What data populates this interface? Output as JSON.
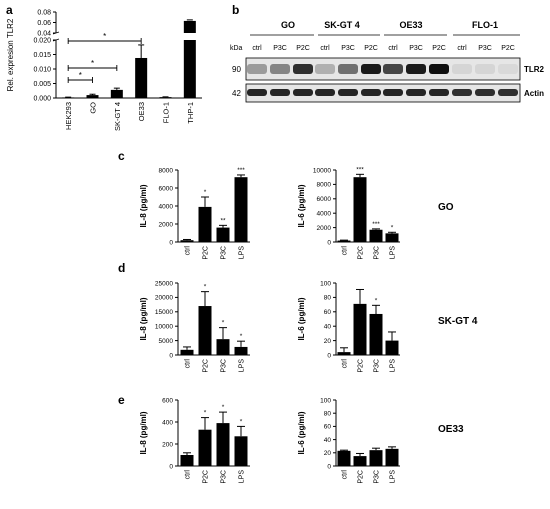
{
  "panel_letters": [
    "a",
    "b",
    "c",
    "d",
    "e"
  ],
  "blot": {
    "kda_label": "kDa",
    "groups": [
      "GO",
      "SK-GT 4",
      "OE33",
      "FLO-1"
    ],
    "lanes": [
      "ctrl",
      "P3C",
      "P2C"
    ],
    "rows": [
      {
        "kda": "90",
        "protein": "TLR2"
      },
      {
        "kda": "42",
        "protein": "Actin"
      }
    ],
    "tlr2_band_intensity": [
      0.35,
      0.45,
      0.85,
      0.25,
      0.55,
      0.95,
      0.75,
      0.95,
      1.0,
      0.08,
      0.08,
      0.06
    ],
    "actin_band_intensity": [
      0.9,
      0.9,
      0.9,
      0.9,
      0.9,
      0.9,
      0.9,
      0.9,
      0.9,
      0.85,
      0.85,
      0.85
    ]
  },
  "row_labels": [
    "GO",
    "SK-GT 4",
    "OE33"
  ],
  "chart_data": [
    {
      "id": "a",
      "type": "bar",
      "ylabel": "Rel. expresion TLR2",
      "categories": [
        "HEK293",
        "GO",
        "SK-GT 4",
        "OE33",
        "FLO-1",
        "THP-1"
      ],
      "values": [
        0.0002,
        0.001,
        0.0028,
        0.0138,
        0.0003,
        0.063
      ],
      "errors": [
        0.0001,
        0.0003,
        0.0006,
        0.0045,
        0.0001,
        0.002
      ],
      "yscale": "broken",
      "ylim_lower": [
        0,
        0.02
      ],
      "ylim_upper": [
        0.04,
        0.08
      ],
      "yticks": [
        "0.000",
        "0.005",
        "0.010",
        "0.015",
        "0.020",
        "0.04",
        "0.06",
        "0.08"
      ],
      "significance": [
        "*",
        "*",
        "*"
      ]
    },
    {
      "id": "c-left",
      "type": "bar",
      "ylabel": "IL-8 (pg/ml)",
      "categories": [
        "ctrl",
        "P2C",
        "P3C",
        "LPS"
      ],
      "values": [
        200,
        3900,
        1600,
        7200
      ],
      "errors": [
        80,
        1100,
        250,
        250
      ],
      "ylim": [
        0,
        8000
      ],
      "yticks": [
        "0",
        "2000",
        "4000",
        "6000",
        "8000"
      ],
      "marks": [
        "",
        "*",
        "**",
        "***"
      ]
    },
    {
      "id": "c-right",
      "type": "bar",
      "ylabel": "IL-6 (pg/ml)",
      "categories": [
        "ctrl",
        "P2C",
        "P3C",
        "LPS"
      ],
      "values": [
        200,
        9000,
        1700,
        1200
      ],
      "errors": [
        60,
        400,
        120,
        150
      ],
      "ylim": [
        0,
        10000
      ],
      "yticks": [
        "0",
        "2000",
        "4000",
        "6000",
        "8000",
        "10000"
      ],
      "marks": [
        "",
        "***",
        "***",
        "*"
      ]
    },
    {
      "id": "d-left",
      "type": "bar",
      "ylabel": "IL-8 (pg/ml)",
      "categories": [
        "ctrl",
        "P2C",
        "P3C",
        "LPS"
      ],
      "values": [
        1800,
        17000,
        5500,
        2800
      ],
      "errors": [
        1000,
        5000,
        4000,
        2000
      ],
      "ylim": [
        0,
        25000
      ],
      "yticks": [
        "0",
        "5000",
        "10000",
        "15000",
        "20000",
        "25000"
      ],
      "marks": [
        "",
        "*",
        "*",
        "*"
      ]
    },
    {
      "id": "d-right",
      "type": "bar",
      "ylabel": "IL-6 (pg/ml)",
      "categories": [
        "ctrl",
        "P2C",
        "P3C",
        "LPS"
      ],
      "values": [
        4,
        71,
        57,
        20
      ],
      "errors": [
        6,
        20,
        12,
        12
      ],
      "ylim": [
        0,
        100
      ],
      "yticks": [
        "0",
        "20",
        "40",
        "60",
        "80",
        "100"
      ],
      "marks": [
        "",
        "",
        "*",
        ""
      ]
    },
    {
      "id": "e-left",
      "type": "bar",
      "ylabel": "IL-8 (pg/ml)",
      "categories": [
        "ctrl",
        "P2C",
        "P3C",
        "LPS"
      ],
      "values": [
        100,
        330,
        390,
        270
      ],
      "errors": [
        20,
        110,
        100,
        90
      ],
      "ylim": [
        0,
        600
      ],
      "yticks": [
        "0",
        "200",
        "400",
        "600"
      ],
      "marks": [
        "",
        "*",
        "*",
        "*"
      ]
    },
    {
      "id": "e-right",
      "type": "bar",
      "ylabel": "IL-6 (pg/ml)",
      "categories": [
        "ctrl",
        "P2C",
        "P3C",
        "LPS"
      ],
      "values": [
        23,
        15,
        24,
        26
      ],
      "errors": [
        1,
        4,
        3,
        3
      ],
      "ylim": [
        0,
        100
      ],
      "yticks": [
        "0",
        "20",
        "40",
        "60",
        "80",
        "100"
      ],
      "marks": [
        "",
        "",
        "",
        ""
      ]
    }
  ]
}
